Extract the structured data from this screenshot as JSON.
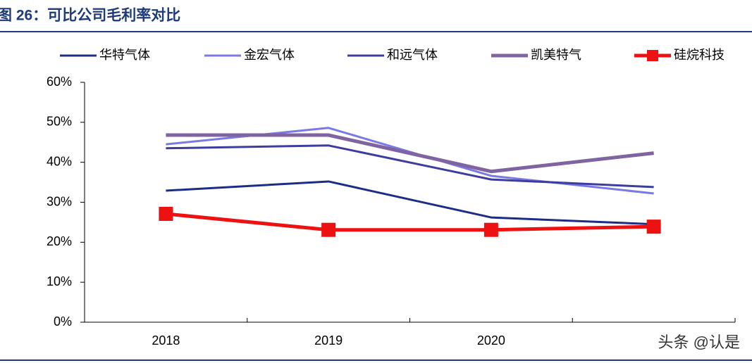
{
  "chart_data": {
    "type": "line",
    "title": "图 26：可比公司毛利率对比",
    "categories": [
      "2018",
      "2019",
      "2020",
      null
    ],
    "series": [
      {
        "name": "华特气体",
        "color": "#1c2d86",
        "line_width": 3,
        "values": [
          32.9,
          35.2,
          26.2,
          24.5
        ]
      },
      {
        "name": "金宏气体",
        "color": "#7a7ae6",
        "line_width": 3,
        "values": [
          44.5,
          48.6,
          36.6,
          32.2
        ]
      },
      {
        "name": "和远气体",
        "color": "#3d3da0",
        "line_width": 3,
        "values": [
          43.5,
          44.2,
          35.7,
          33.8
        ]
      },
      {
        "name": "凯美特气",
        "color": "#8064a2",
        "line_width": 5,
        "values": [
          46.8,
          46.8,
          37.7,
          42.3
        ]
      },
      {
        "name": "硅烷科技",
        "color": "#ee1111",
        "line_width": 5,
        "marker": "square",
        "values": [
          27.1,
          23.1,
          23.1,
          23.9
        ]
      }
    ],
    "ylim": [
      0,
      60
    ],
    "yticks": [
      {
        "value": 0,
        "label": "0%"
      },
      {
        "value": 10,
        "label": "10%"
      },
      {
        "value": 20,
        "label": "20%"
      },
      {
        "value": 30,
        "label": "30%"
      },
      {
        "value": 40,
        "label": "40%"
      },
      {
        "value": 50,
        "label": "50%"
      },
      {
        "value": 60,
        "label": "60%"
      }
    ],
    "grid": false,
    "legend": "top",
    "watermark": "头条 @认是"
  }
}
